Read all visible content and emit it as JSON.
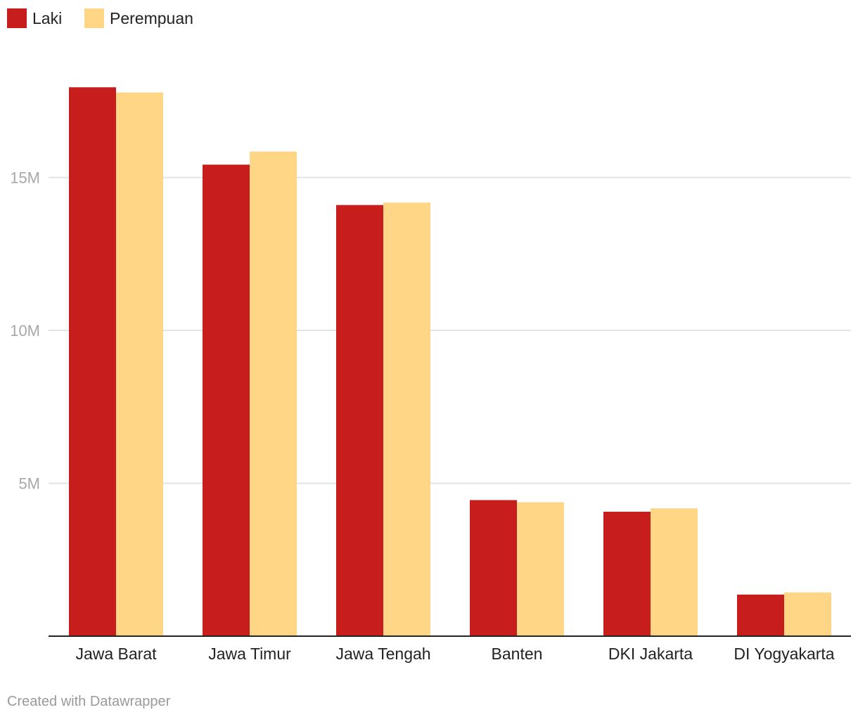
{
  "chart_data": {
    "type": "bar",
    "title": "",
    "xlabel": "",
    "ylabel": "",
    "ylim": [
      0,
      18500000
    ],
    "yticks": [
      {
        "value": 5000000,
        "label": "5M"
      },
      {
        "value": 10000000,
        "label": "10M"
      },
      {
        "value": 15000000,
        "label": "15M"
      }
    ],
    "grid": true,
    "legend_position": "top-left",
    "categories": [
      "Jawa Barat",
      "Jawa Timur",
      "Jawa Tengah",
      "Banten",
      "DKI Jakarta",
      "DI Yogyakarta"
    ],
    "series": [
      {
        "name": "Laki",
        "color": "#c71e1d",
        "values": [
          17950000,
          15420000,
          14100000,
          4450000,
          4070000,
          1360000
        ]
      },
      {
        "name": "Perempuan",
        "color": "#fed686",
        "values": [
          17780000,
          15850000,
          14180000,
          4380000,
          4180000,
          1430000
        ]
      }
    ]
  },
  "footer": {
    "credit": "Created with Datawrapper"
  }
}
